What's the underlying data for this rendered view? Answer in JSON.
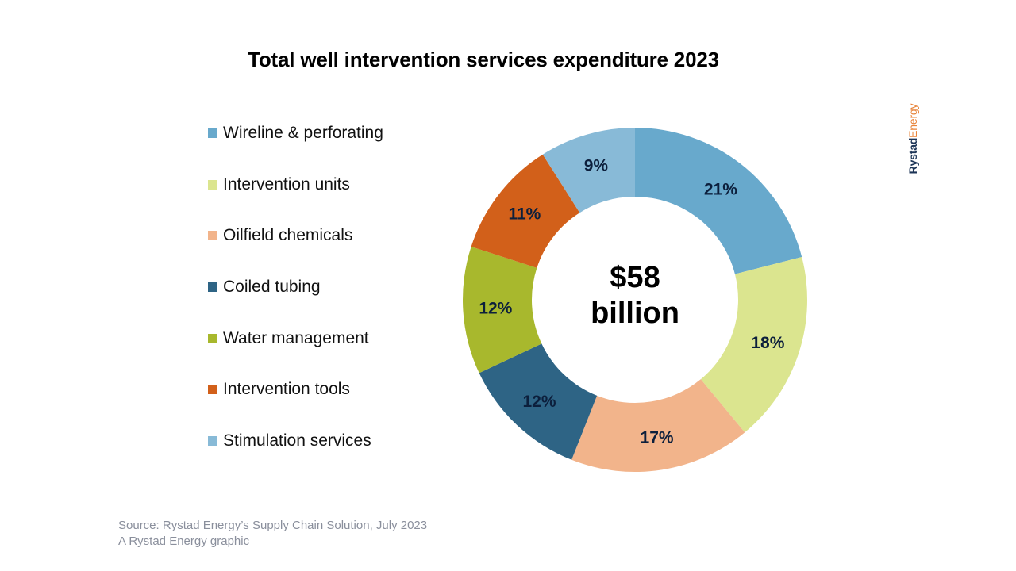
{
  "chart_data": {
    "type": "pie",
    "title": "Total well intervention services expenditure 2023",
    "center_label": [
      "$58",
      "billion"
    ],
    "categories": [
      "Wireline & perforating",
      "Intervention units",
      "Oilfield chemicals",
      "Coiled tubing",
      "Water management",
      "Intervention tools",
      "Stimulation services"
    ],
    "values": [
      21,
      18,
      17,
      12,
      12,
      11,
      9
    ],
    "labels": [
      "21%",
      "18%",
      "17%",
      "12%",
      "12%",
      "11%",
      "9%"
    ],
    "colors": [
      "#68a9cc",
      "#dbe58f",
      "#f2b48b",
      "#2e6485",
      "#a8b82d",
      "#d2601a",
      "#88bad7"
    ],
    "legend_position": "left"
  },
  "brand": {
    "part1": "Rystad",
    "part2": "Energy"
  },
  "source": {
    "line1": "Source: Rystad Energy’s Supply Chain Solution, July 2023",
    "line2": "A Rystad Energy graphic"
  }
}
